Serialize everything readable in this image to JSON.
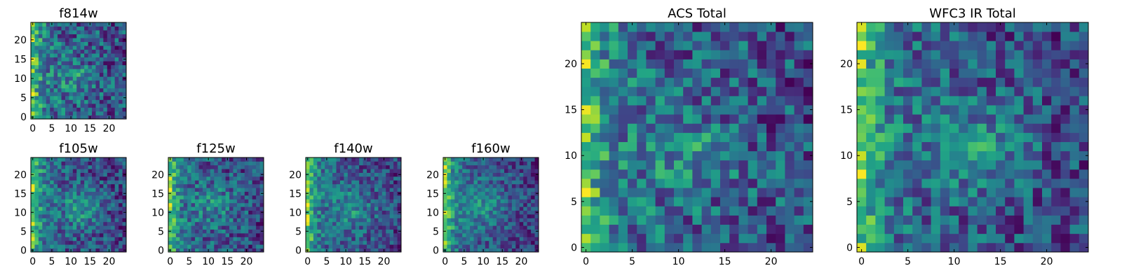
{
  "figure": {
    "background": "#ffffff",
    "colormap": "viridis"
  },
  "chart_data": [
    {
      "id": "f814w",
      "type": "heatmap",
      "title": "f814w",
      "grid_size": [
        25,
        25
      ],
      "origin": "lower",
      "xlim": [
        -0.5,
        24.5
      ],
      "ylim": [
        -0.5,
        24.5
      ],
      "xticks": [
        0,
        5,
        10,
        15,
        20
      ],
      "yticks": [
        0,
        5,
        10,
        15,
        20
      ],
      "xtick_labels": [
        "0",
        "5",
        "10",
        "15",
        "20"
      ],
      "ytick_labels": [
        "0",
        "5",
        "10",
        "15",
        "20"
      ],
      "seed": 11,
      "corner_glow": 0.85,
      "blob": [
        11,
        10,
        3.5,
        0.22
      ],
      "noise": 0.32,
      "base": 0.42
    },
    {
      "id": "f105w",
      "type": "heatmap",
      "title": "f105w",
      "grid_size": [
        25,
        25
      ],
      "origin": "lower",
      "xlim": [
        -0.5,
        24.5
      ],
      "ylim": [
        -0.5,
        24.5
      ],
      "xticks": [
        0,
        5,
        10,
        15,
        20
      ],
      "yticks": [
        0,
        5,
        10,
        15,
        20
      ],
      "xtick_labels": [
        "0",
        "5",
        "10",
        "15",
        "20"
      ],
      "ytick_labels": [
        "0",
        "5",
        "10",
        "15",
        "20"
      ],
      "seed": 23,
      "corner_glow": 0.8,
      "blob": [
        13,
        11,
        3.5,
        0.28
      ],
      "noise": 0.22,
      "base": 0.45
    },
    {
      "id": "f125w",
      "type": "heatmap",
      "title": "f125w",
      "grid_size": [
        25,
        25
      ],
      "origin": "lower",
      "xlim": [
        -0.5,
        24.5
      ],
      "ylim": [
        -0.5,
        24.5
      ],
      "xticks": [
        0,
        5,
        10,
        15,
        20
      ],
      "yticks": [
        0,
        5,
        10,
        15,
        20
      ],
      "xtick_labels": [
        "0",
        "5",
        "10",
        "15",
        "20"
      ],
      "ytick_labels": [
        "0",
        "5",
        "10",
        "15",
        "20"
      ],
      "seed": 37,
      "corner_glow": 0.8,
      "blob": [
        12,
        12,
        4,
        0.2
      ],
      "noise": 0.25,
      "base": 0.5
    },
    {
      "id": "f140w",
      "type": "heatmap",
      "title": "f140w",
      "grid_size": [
        25,
        25
      ],
      "origin": "lower",
      "xlim": [
        -0.5,
        24.5
      ],
      "ylim": [
        -0.5,
        24.5
      ],
      "xticks": [
        0,
        5,
        10,
        15,
        20
      ],
      "yticks": [
        0,
        5,
        10,
        15,
        20
      ],
      "xtick_labels": [
        "0",
        "5",
        "10",
        "15",
        "20"
      ],
      "ytick_labels": [
        "0",
        "5",
        "10",
        "15",
        "20"
      ],
      "seed": 41,
      "corner_glow": 0.9,
      "blob": [
        12,
        11,
        4,
        0.25
      ],
      "noise": 0.24,
      "base": 0.48
    },
    {
      "id": "f160w",
      "type": "heatmap",
      "title": "f160w",
      "grid_size": [
        25,
        25
      ],
      "origin": "lower",
      "xlim": [
        -0.5,
        24.5
      ],
      "ylim": [
        -0.5,
        24.5
      ],
      "xticks": [
        0,
        5,
        10,
        15,
        20
      ],
      "yticks": [
        0,
        5,
        10,
        15,
        20
      ],
      "xtick_labels": [
        "0",
        "5",
        "10",
        "15",
        "20"
      ],
      "ytick_labels": [
        "0",
        "5",
        "10",
        "15",
        "20"
      ],
      "seed": 53,
      "corner_glow": 0.9,
      "blob": [
        10,
        12,
        5,
        0.22
      ],
      "noise": 0.2,
      "base": 0.44
    },
    {
      "id": "acs-total",
      "type": "heatmap",
      "title": "ACS Total",
      "grid_size": [
        25,
        25
      ],
      "origin": "lower",
      "xlim": [
        -0.5,
        24.5
      ],
      "ylim": [
        -0.5,
        24.5
      ],
      "xticks": [
        0,
        5,
        10,
        15,
        20
      ],
      "yticks": [
        0,
        5,
        10,
        15,
        20
      ],
      "xtick_labels": [
        "0",
        "5",
        "10",
        "15",
        "20"
      ],
      "ytick_labels": [
        "0",
        "5",
        "10",
        "15",
        "20"
      ],
      "seed": 11,
      "corner_glow": 0.85,
      "blob": [
        11,
        10,
        3.5,
        0.22
      ],
      "noise": 0.32,
      "base": 0.42
    },
    {
      "id": "wfc3-ir-total",
      "type": "heatmap",
      "title": "WFC3 IR Total",
      "grid_size": [
        25,
        25
      ],
      "origin": "lower",
      "xlim": [
        -0.5,
        24.5
      ],
      "ylim": [
        -0.5,
        24.5
      ],
      "xticks": [
        0,
        5,
        10,
        15,
        20
      ],
      "yticks": [
        0,
        5,
        10,
        15,
        20
      ],
      "xtick_labels": [
        "0",
        "5",
        "10",
        "15",
        "20"
      ],
      "ytick_labels": [
        "0",
        "5",
        "10",
        "15",
        "20"
      ],
      "seed": 67,
      "corner_glow": 0.85,
      "blob": [
        13,
        11,
        3.5,
        0.25
      ],
      "noise": 0.26,
      "base": 0.46
    }
  ]
}
